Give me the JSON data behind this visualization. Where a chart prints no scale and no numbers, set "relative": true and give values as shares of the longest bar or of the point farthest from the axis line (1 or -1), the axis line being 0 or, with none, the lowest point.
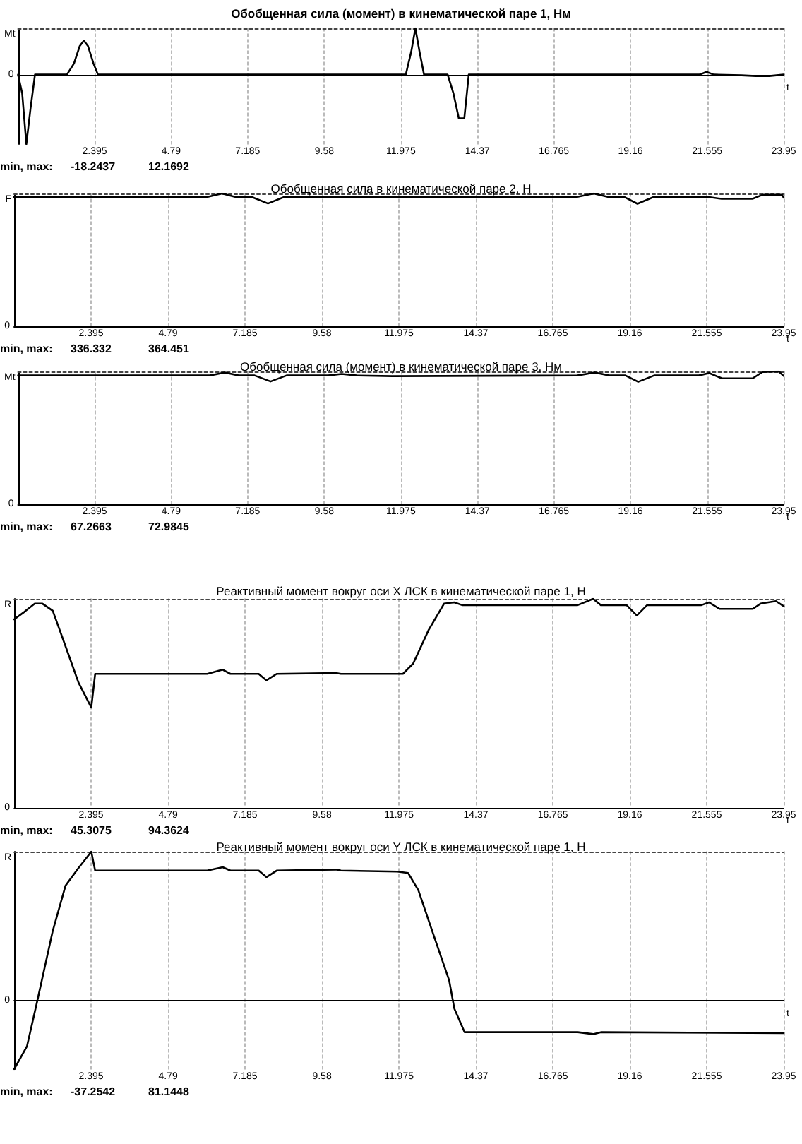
{
  "chart_data": [
    {
      "type": "line",
      "relative": true,
      "title": "Обобщенная сила (момент) в кинематической паре 1, Нм",
      "xlabel": "t",
      "ylabel": "Mt",
      "xlim": [
        0,
        23.95
      ],
      "xticks": [
        2.395,
        4.79,
        7.185,
        9.58,
        11.975,
        14.37,
        16.765,
        19.16,
        21.555,
        23.95
      ],
      "grid": "x",
      "annotations": [
        "0",
        "min, max:",
        "-18.2437",
        "12.1692"
      ],
      "series": [
        {
          "color": "#000000",
          "x": [
            0,
            0.13,
            0.26,
            0.39,
            0.53,
            1.53,
            1.75,
            1.93,
            2.06,
            2.19,
            2.36,
            2.5,
            12.13,
            12.3,
            12.43,
            12.56,
            12.7,
            13.44,
            13.62,
            13.79,
            13.96,
            14.1,
            21.32,
            21.54,
            21.76,
            22.63,
            23.07,
            23.5,
            23.95
          ],
          "values": [
            0,
            -0.27,
            -1,
            -0.49,
            0,
            0,
            0.16,
            0.41,
            0.49,
            0.41,
            0.16,
            0,
            0,
            0.33,
            0.667,
            0.33,
            0,
            0,
            -0.27,
            -0.63,
            -0.63,
            0,
            0,
            0.04,
            0,
            -0.01,
            -0.02,
            -0.02,
            0
          ]
        }
      ]
    },
    {
      "type": "line",
      "relative": true,
      "title": "Обобщенная сила в кинематической паре 2, Н",
      "xlabel": "t",
      "ylabel": "F",
      "xlim": [
        0,
        23.95
      ],
      "xticks": [
        2.395,
        4.79,
        7.185,
        9.58,
        11.975,
        14.37,
        16.765,
        19.16,
        21.555,
        23.95
      ],
      "grid": "x",
      "annotations": [
        "0",
        "min, max:",
        "336.332",
        "364.451"
      ],
      "series": [
        {
          "color": "#000000",
          "x": [
            0,
            6.0,
            6.47,
            6.9,
            7.4,
            7.9,
            8.4,
            17.5,
            18.04,
            18.5,
            19.0,
            19.4,
            19.9,
            21.62,
            22.02,
            22.98,
            23.29,
            23.9,
            23.95
          ],
          "values": [
            0.973,
            0.973,
            1,
            0.973,
            0.973,
            0.925,
            0.973,
            0.973,
            1,
            0.973,
            0.973,
            0.923,
            0.973,
            0.973,
            0.96,
            0.96,
            0.99,
            0.99,
            0.969
          ]
        }
      ]
    },
    {
      "type": "line",
      "relative": true,
      "title": "Обобщенная сила (момент) в кинематической паре 3, Нм",
      "xlabel": "t",
      "ylabel": "Mt",
      "xlim": [
        0,
        23.95
      ],
      "xticks": [
        2.395,
        4.79,
        7.185,
        9.58,
        11.975,
        14.37,
        16.765,
        19.16,
        21.555,
        23.95
      ],
      "grid": "x",
      "annotations": [
        "0",
        "min, max:",
        "67.2663",
        "72.9845"
      ],
      "series": [
        {
          "color": "#000000",
          "x": [
            0,
            6.0,
            6.47,
            6.9,
            7.4,
            7.9,
            8.4,
            9.7,
            10.12,
            10.6,
            11.7,
            17.5,
            18.04,
            18.5,
            19.0,
            19.4,
            19.9,
            21.3,
            21.62,
            22.02,
            22.98,
            23.29,
            23.8,
            23.95
          ],
          "values": [
            0.97,
            0.97,
            0.992,
            0.97,
            0.97,
            0.925,
            0.97,
            0.97,
            0.981,
            0.97,
            0.965,
            0.97,
            0.992,
            0.97,
            0.97,
            0.922,
            0.97,
            0.97,
            0.988,
            0.948,
            0.948,
            0.996,
            1,
            0.966
          ]
        }
      ]
    },
    {
      "type": "line",
      "relative": true,
      "title": "Реактивный момент вокруг оси X ЛСК в кинематической паре 1, Н",
      "xlabel": "t",
      "ylabel": "R",
      "xlim": [
        0,
        23.95
      ],
      "xticks": [
        2.395,
        4.79,
        7.185,
        9.58,
        11.975,
        14.37,
        16.765,
        19.16,
        21.555,
        23.95
      ],
      "grid": "x",
      "annotations": [
        "0",
        "min, max:",
        "45.3075",
        "94.3624"
      ],
      "series": [
        {
          "color": "#000000",
          "x": [
            0,
            0.32,
            0.64,
            0.88,
            1.2,
            1.68,
            2.0,
            2.4,
            2.52,
            6.01,
            6.49,
            6.73,
            7.61,
            7.85,
            8.17,
            10.01,
            10.17,
            12.1,
            12.42,
            12.9,
            13.38,
            13.7,
            13.94,
            17.54,
            18.02,
            18.26,
            19.06,
            19.38,
            19.7,
            21.39,
            21.63,
            21.95,
            22.99,
            23.23,
            23.71,
            23.95
          ],
          "values": [
            0.902,
            0.938,
            0.977,
            0.977,
            0.943,
            0.738,
            0.6,
            0.48,
            0.641,
            0.641,
            0.661,
            0.641,
            0.641,
            0.61,
            0.641,
            0.645,
            0.641,
            0.641,
            0.691,
            0.851,
            0.977,
            0.983,
            0.97,
            0.97,
            1,
            0.97,
            0.97,
            0.92,
            0.97,
            0.97,
            0.983,
            0.952,
            0.952,
            0.977,
            0.989,
            0.965
          ]
        }
      ]
    },
    {
      "type": "line",
      "relative": true,
      "title": "Реактивный момент вокруг оси Y ЛСК в кинематической паре 1, Н",
      "xlabel": "t",
      "ylabel": "R",
      "xlim": [
        0,
        23.95
      ],
      "xticks": [
        2.395,
        4.79,
        7.185,
        9.58,
        11.975,
        14.37,
        16.765,
        19.16,
        21.555,
        23.95
      ],
      "grid": "x",
      "annotations": [
        "0",
        "min, max:",
        "-37.2542",
        "81.1448"
      ],
      "series": [
        {
          "color": "#000000",
          "x": [
            0,
            0.4,
            0.72,
            1.2,
            1.6,
            2.0,
            2.4,
            2.52,
            6.01,
            6.49,
            6.73,
            7.61,
            7.85,
            8.17,
            10.01,
            10.17,
            11.93,
            12.26,
            12.58,
            13.06,
            13.54,
            13.7,
            14.02,
            17.54,
            18.02,
            18.26,
            23.95
          ],
          "values": [
            -0.459,
            -0.304,
            0,
            0.468,
            0.773,
            0.89,
            1,
            0.873,
            0.873,
            0.896,
            0.873,
            0.873,
            0.829,
            0.873,
            0.88,
            0.873,
            0.866,
            0.857,
            0.741,
            0.437,
            0.136,
            -0.053,
            -0.211,
            -0.211,
            -0.224,
            -0.211,
            -0.217
          ]
        }
      ]
    }
  ]
}
